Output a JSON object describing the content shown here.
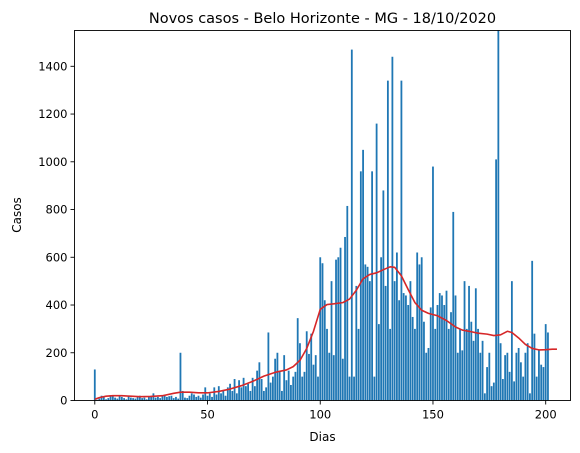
{
  "chart_data": {
    "type": "bar",
    "title": "Novos casos - Belo Horizonte - MG - 18/10/2020",
    "xlabel": "Dias",
    "ylabel": "Casos",
    "xlim": [
      -9,
      211
    ],
    "ylim": [
      0,
      1550
    ],
    "xticks": [
      0,
      50,
      100,
      150,
      200
    ],
    "yticks": [
      0,
      200,
      400,
      600,
      800,
      1000,
      1200,
      1400
    ],
    "grid": false,
    "colors": {
      "bars": "#1f77b4",
      "line": "#d62728"
    },
    "series": [
      {
        "type": "bar",
        "x_start": 0,
        "values": [
          130,
          3,
          8,
          20,
          15,
          5,
          10,
          22,
          18,
          12,
          8,
          20,
          15,
          10,
          5,
          18,
          12,
          10,
          8,
          15,
          20,
          10,
          12,
          5,
          15,
          20,
          30,
          12,
          15,
          10,
          20,
          25,
          15,
          18,
          20,
          10,
          15,
          8,
          200,
          40,
          12,
          10,
          20,
          30,
          25,
          15,
          20,
          12,
          25,
          55,
          20,
          30,
          15,
          55,
          25,
          60,
          30,
          40,
          20,
          55,
          70,
          40,
          90,
          30,
          85,
          55,
          95,
          60,
          70,
          40,
          95,
          60,
          125,
          160,
          90,
          40,
          55,
          285,
          75,
          100,
          175,
          200,
          120,
          40,
          190,
          85,
          125,
          65,
          100,
          120,
          345,
          240,
          100,
          120,
          290,
          195,
          280,
          150,
          190,
          100,
          600,
          575,
          420,
          300,
          200,
          500,
          190,
          590,
          600,
          640,
          175,
          685,
          815,
          100,
          1470,
          100,
          480,
          300,
          960,
          1050,
          570,
          560,
          500,
          960,
          100,
          1160,
          320,
          600,
          880,
          480,
          1340,
          300,
          1440,
          500,
          620,
          420,
          1340,
          450,
          440,
          400,
          500,
          350,
          300,
          620,
          570,
          600,
          330,
          200,
          220,
          390,
          980,
          300,
          400,
          450,
          440,
          400,
          460,
          300,
          370,
          790,
          440,
          200,
          300,
          210,
          500,
          300,
          480,
          330,
          250,
          470,
          300,
          200,
          250,
          30,
          140,
          200,
          60,
          75,
          1010,
          1550,
          240,
          90,
          190,
          200,
          120,
          500,
          80,
          200,
          220,
          160,
          100,
          200,
          240,
          30,
          585,
          280,
          100,
          210,
          150,
          140,
          320,
          285
        ]
      },
      {
        "type": "line",
        "points": [
          [
            0,
            5
          ],
          [
            2,
            12
          ],
          [
            5,
            18
          ],
          [
            8,
            20
          ],
          [
            12,
            20
          ],
          [
            16,
            18
          ],
          [
            20,
            16
          ],
          [
            25,
            17
          ],
          [
            30,
            20
          ],
          [
            35,
            30
          ],
          [
            38,
            35
          ],
          [
            42,
            35
          ],
          [
            46,
            32
          ],
          [
            50,
            32
          ],
          [
            55,
            38
          ],
          [
            60,
            48
          ],
          [
            65,
            62
          ],
          [
            70,
            80
          ],
          [
            75,
            102
          ],
          [
            80,
            118
          ],
          [
            85,
            128
          ],
          [
            88,
            142
          ],
          [
            91,
            168
          ],
          [
            94,
            218
          ],
          [
            97,
            290
          ],
          [
            100,
            382
          ],
          [
            103,
            402
          ],
          [
            106,
            405
          ],
          [
            110,
            410
          ],
          [
            113,
            425
          ],
          [
            116,
            462
          ],
          [
            119,
            510
          ],
          [
            122,
            528
          ],
          [
            125,
            535
          ],
          [
            128,
            548
          ],
          [
            131,
            560
          ],
          [
            133,
            558
          ],
          [
            136,
            522
          ],
          [
            139,
            465
          ],
          [
            142,
            410
          ],
          [
            145,
            378
          ],
          [
            148,
            365
          ],
          [
            152,
            355
          ],
          [
            156,
            335
          ],
          [
            160,
            308
          ],
          [
            163,
            295
          ],
          [
            167,
            288
          ],
          [
            170,
            282
          ],
          [
            174,
            278
          ],
          [
            177,
            272
          ],
          [
            180,
            275
          ],
          [
            183,
            290
          ],
          [
            185,
            285
          ],
          [
            188,
            262
          ],
          [
            191,
            235
          ],
          [
            194,
            218
          ],
          [
            197,
            212
          ],
          [
            200,
            213
          ],
          [
            203,
            215
          ],
          [
            205,
            215
          ]
        ]
      }
    ]
  }
}
